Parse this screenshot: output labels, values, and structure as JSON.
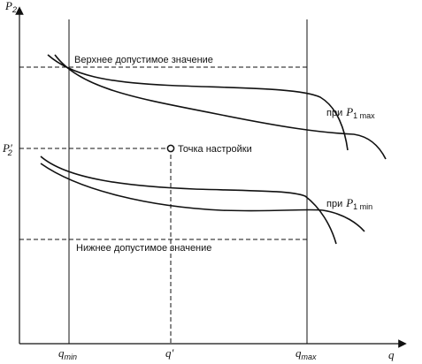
{
  "axes": {
    "y_label": "P",
    "y_label_sub": "2",
    "x_label": "q"
  },
  "levels": {
    "upper_label": "Верхнее допустимое значение",
    "lower_label": "Нижнее допустимое значение",
    "setpoint_label": "Точка настройки",
    "p2_prime": "P",
    "p2_prime_sub": "2",
    "p2_prime_mark": "′"
  },
  "x_ticks": {
    "qmin": "q",
    "qmin_sub": "min",
    "qprime": "q′",
    "qmax": "q",
    "qmax_sub": "max"
  },
  "curves": {
    "pmax_prefix": "при",
    "pmax_var": "P",
    "pmax_sub": "1 max",
    "pmin_prefix": "при",
    "pmin_var": "P",
    "pmin_sub": "1 min"
  }
}
